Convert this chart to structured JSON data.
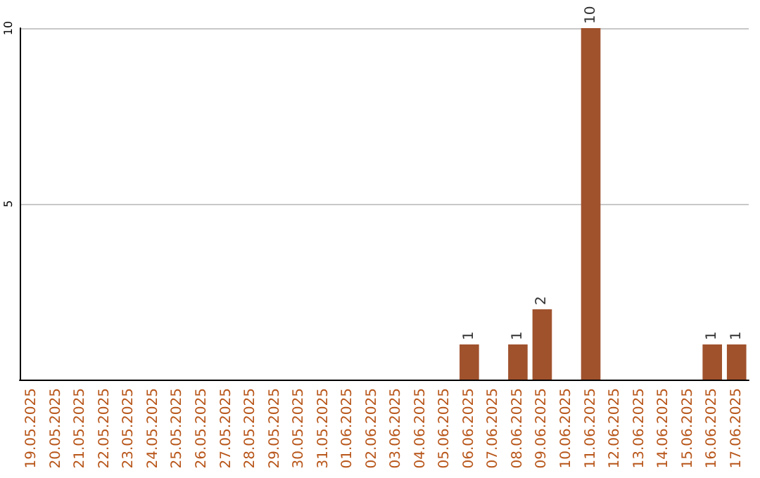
{
  "chart_data": {
    "type": "bar",
    "categories": [
      "19.05.2025",
      "20.05.2025",
      "21.05.2025",
      "22.05.2025",
      "23.05.2025",
      "24.05.2025",
      "25.05.2025",
      "26.05.2025",
      "27.05.2025",
      "28.05.2025",
      "29.05.2025",
      "30.05.2025",
      "31.05.2025",
      "01.06.2025",
      "02.06.2025",
      "03.06.2025",
      "04.06.2025",
      "05.06.2025",
      "06.06.2025",
      "07.06.2025",
      "08.06.2025",
      "09.06.2025",
      "10.06.2025",
      "11.06.2025",
      "12.06.2025",
      "13.06.2025",
      "14.06.2025",
      "15.06.2025",
      "16.06.2025",
      "17.06.2025"
    ],
    "values": [
      0,
      0,
      0,
      0,
      0,
      0,
      0,
      0,
      0,
      0,
      0,
      0,
      0,
      0,
      0,
      0,
      0,
      0,
      1,
      0,
      1,
      2,
      0,
      10,
      0,
      0,
      0,
      0,
      1,
      1
    ],
    "value_labels": [
      null,
      null,
      null,
      null,
      null,
      null,
      null,
      null,
      null,
      null,
      null,
      null,
      null,
      null,
      null,
      null,
      null,
      null,
      "1",
      null,
      "1",
      "2",
      null,
      "10",
      null,
      null,
      null,
      null,
      "1",
      "1"
    ],
    "color": "#a0522d",
    "ylim": [
      0,
      10
    ],
    "yticks": [
      5,
      10
    ],
    "grid": "y"
  }
}
